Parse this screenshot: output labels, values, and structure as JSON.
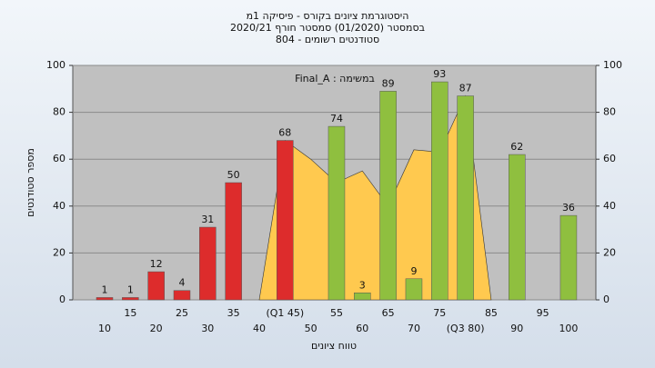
{
  "chart_data": {
    "type": "bar",
    "title": [
      "היסטוגרמת ציונים בקורס - פיסיקה 1מ",
      "בסמסטר (01/2020) סמסטר חורף 2020/21",
      "סטודנטים רשומים - 804"
    ],
    "annotation": "במשימה : Final_A",
    "x_label": "טווח ציונים",
    "y_label": "מספר סטודנטים",
    "categories": [
      "10",
      "15",
      "20",
      "25",
      "30",
      "35",
      "40",
      "(Q1 45)",
      "50",
      "55",
      "60",
      "65",
      "70",
      "75",
      "(Q3 80)",
      "85",
      "90",
      "95",
      "100"
    ],
    "values": [
      1,
      1,
      12,
      4,
      31,
      50,
      null,
      68,
      null,
      74,
      3,
      89,
      9,
      93,
      87,
      null,
      62,
      null,
      36
    ],
    "bar_colors": [
      "#dd2c2c",
      "#dd2c2c",
      "#dd2c2c",
      "#dd2c2c",
      "#dd2c2c",
      "#dd2c2c",
      "#dd2c2c",
      "#dd2c2c",
      "#8fbf3f",
      "#8fbf3f",
      "#8fbf3f",
      "#8fbf3f",
      "#8fbf3f",
      "#8fbf3f",
      "#8fbf3f",
      "#8fbf3f",
      "#8fbf3f",
      "#8fbf3f",
      "#8fbf3f"
    ],
    "area_values": [
      null,
      null,
      null,
      null,
      null,
      null,
      0,
      68,
      60,
      50,
      55,
      40,
      64,
      63,
      87,
      0,
      null,
      null,
      null
    ],
    "area_color": "#ffc94f",
    "ylim": [
      0,
      100
    ],
    "yticks": [
      0,
      20,
      40,
      60,
      80,
      100
    ],
    "y2lim": [
      0,
      100
    ],
    "y2ticks": [
      0,
      20,
      40,
      60,
      80,
      100
    ],
    "grid": true
  }
}
